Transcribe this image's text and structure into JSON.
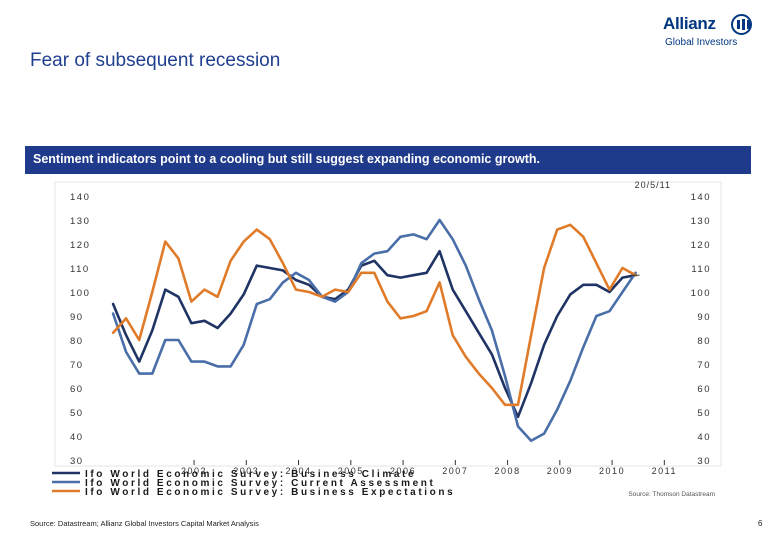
{
  "slide": {
    "title": "Fear of subsequent recession",
    "banner": "Sentiment indicators point to a cooling but still suggest expanding economic growth.",
    "footer_source": "Source: Datastream; Allianz Global Investors Capital Market Analysis",
    "page_number": "6",
    "logo_word": "Allianz",
    "logo_sub": "Global Investors"
  },
  "colors": {
    "business_climate": "#1f3464",
    "current_assessment": "#4a6ea8",
    "business_expectations": "#e07b2a",
    "banner": "#1f3a8a"
  },
  "chart_data": {
    "type": "line",
    "date_label": "20/5/11",
    "source_label": "Source: Thomson Datastream",
    "ylim": [
      30,
      140
    ],
    "yticks": [
      30,
      40,
      50,
      60,
      70,
      80,
      90,
      100,
      110,
      120,
      130,
      140
    ],
    "xlim": [
      2000.5,
      2011.6
    ],
    "xtick_labels": [
      "2002",
      "2003",
      "2004",
      "2005",
      "2006",
      "2007",
      "2008",
      "2009",
      "2010",
      "2011"
    ],
    "xtick_values": [
      2002.3,
      2003.3,
      2004.3,
      2005.3,
      2006.3,
      2007.3,
      2008.3,
      2009.3,
      2010.3,
      2011.3
    ],
    "series": [
      {
        "name": "Ifo World Economic Survey: Business Climate",
        "color": "#1f3464",
        "points": [
          [
            2000.75,
            95
          ],
          [
            2001.0,
            82
          ],
          [
            2001.25,
            71
          ],
          [
            2001.5,
            84
          ],
          [
            2001.75,
            101
          ],
          [
            2002.0,
            98
          ],
          [
            2002.25,
            87
          ],
          [
            2002.5,
            88
          ],
          [
            2002.75,
            85
          ],
          [
            2003.0,
            91
          ],
          [
            2003.25,
            99
          ],
          [
            2003.5,
            111
          ],
          [
            2003.75,
            110
          ],
          [
            2004.0,
            109
          ],
          [
            2004.25,
            105
          ],
          [
            2004.5,
            103
          ],
          [
            2004.75,
            98
          ],
          [
            2005.0,
            97
          ],
          [
            2005.25,
            101
          ],
          [
            2005.5,
            111
          ],
          [
            2005.75,
            113
          ],
          [
            2006.0,
            107
          ],
          [
            2006.25,
            106
          ],
          [
            2006.5,
            107
          ],
          [
            2006.75,
            108
          ],
          [
            2007.0,
            117
          ],
          [
            2007.25,
            101
          ],
          [
            2007.5,
            92
          ],
          [
            2007.75,
            83
          ],
          [
            2008.0,
            74
          ],
          [
            2008.25,
            60
          ],
          [
            2008.5,
            48
          ],
          [
            2008.75,
            62
          ],
          [
            2009.0,
            78
          ],
          [
            2009.25,
            90
          ],
          [
            2009.5,
            99
          ],
          [
            2009.75,
            103
          ],
          [
            2010.0,
            103
          ],
          [
            2010.25,
            100
          ],
          [
            2010.5,
            106
          ],
          [
            2010.75,
            107
          ]
        ]
      },
      {
        "name": "Ifo World Economic Survey: Current Assessment",
        "color": "#4a6ea8",
        "points": [
          [
            2000.75,
            91
          ],
          [
            2001.0,
            75
          ],
          [
            2001.25,
            66
          ],
          [
            2001.5,
            66
          ],
          [
            2001.75,
            80
          ],
          [
            2002.0,
            80
          ],
          [
            2002.25,
            71
          ],
          [
            2002.5,
            71
          ],
          [
            2002.75,
            69
          ],
          [
            2003.0,
            69
          ],
          [
            2003.25,
            78
          ],
          [
            2003.5,
            95
          ],
          [
            2003.75,
            97
          ],
          [
            2004.0,
            104
          ],
          [
            2004.25,
            108
          ],
          [
            2004.5,
            105
          ],
          [
            2004.75,
            98
          ],
          [
            2005.0,
            96
          ],
          [
            2005.25,
            100
          ],
          [
            2005.5,
            112
          ],
          [
            2005.75,
            116
          ],
          [
            2006.0,
            117
          ],
          [
            2006.25,
            123
          ],
          [
            2006.5,
            124
          ],
          [
            2006.75,
            122
          ],
          [
            2007.0,
            130
          ],
          [
            2007.25,
            122
          ],
          [
            2007.5,
            111
          ],
          [
            2007.75,
            97
          ],
          [
            2008.0,
            84
          ],
          [
            2008.25,
            65
          ],
          [
            2008.5,
            44
          ],
          [
            2008.75,
            38
          ],
          [
            2009.0,
            41
          ],
          [
            2009.25,
            51
          ],
          [
            2009.5,
            63
          ],
          [
            2009.75,
            77
          ],
          [
            2010.0,
            90
          ],
          [
            2010.25,
            92
          ],
          [
            2010.5,
            100
          ],
          [
            2010.75,
            108
          ]
        ]
      },
      {
        "name": "Ifo World Economic Survey: Business Expectations",
        "color": "#e07b2a",
        "points": [
          [
            2000.75,
            83
          ],
          [
            2001.0,
            89
          ],
          [
            2001.25,
            80
          ],
          [
            2001.5,
            100
          ],
          [
            2001.75,
            121
          ],
          [
            2002.0,
            114
          ],
          [
            2002.25,
            96
          ],
          [
            2002.5,
            101
          ],
          [
            2002.75,
            98
          ],
          [
            2003.0,
            113
          ],
          [
            2003.25,
            121
          ],
          [
            2003.5,
            126
          ],
          [
            2003.75,
            122
          ],
          [
            2004.0,
            112
          ],
          [
            2004.25,
            101
          ],
          [
            2004.5,
            100
          ],
          [
            2004.75,
            98
          ],
          [
            2005.0,
            101
          ],
          [
            2005.25,
            100
          ],
          [
            2005.5,
            108
          ],
          [
            2005.75,
            108
          ],
          [
            2006.0,
            96
          ],
          [
            2006.25,
            89
          ],
          [
            2006.5,
            90
          ],
          [
            2006.75,
            92
          ],
          [
            2007.0,
            104
          ],
          [
            2007.25,
            82
          ],
          [
            2007.5,
            73
          ],
          [
            2007.75,
            66
          ],
          [
            2008.0,
            60
          ],
          [
            2008.25,
            53
          ],
          [
            2008.5,
            53
          ],
          [
            2008.75,
            82
          ],
          [
            2009.0,
            110
          ],
          [
            2009.25,
            126
          ],
          [
            2009.5,
            128
          ],
          [
            2009.75,
            123
          ],
          [
            2010.0,
            112
          ],
          [
            2010.25,
            101
          ],
          [
            2010.5,
            110
          ],
          [
            2010.75,
            107
          ]
        ]
      }
    ]
  }
}
